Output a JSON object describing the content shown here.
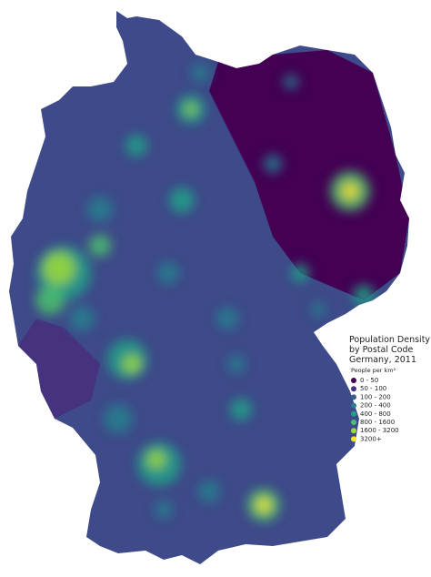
{
  "title": [
    "Population Density",
    "by Postal Code",
    "Germany, 2011"
  ],
  "legend": {
    "title": "People per km²",
    "items": [
      {
        "label": "0 - 50",
        "color": "#440154"
      },
      {
        "label": "50 - 100",
        "color": "#46327e"
      },
      {
        "label": "100 - 200",
        "color": "#365c8d"
      },
      {
        "label": "200 - 400",
        "color": "#277f8e"
      },
      {
        "label": "400 - 800",
        "color": "#1fa187"
      },
      {
        "label": "800 - 1600",
        "color": "#4ac16d"
      },
      {
        "label": "1600 - 3200",
        "color": "#a0da39"
      },
      {
        "label": "3200+",
        "color": "#fde725"
      }
    ]
  }
}
